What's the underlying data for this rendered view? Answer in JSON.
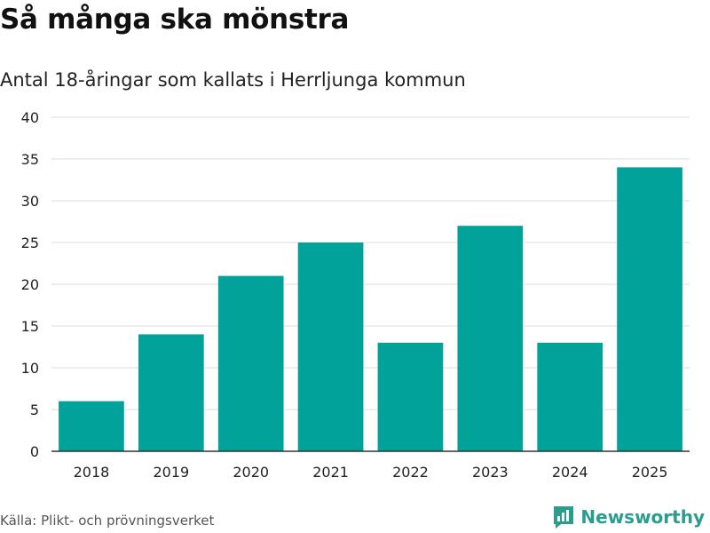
{
  "title": "Så många ska mönstra",
  "subtitle": "Antal 18-åringar som kallats i Herrljunga kommun",
  "source": "Källa: Plikt- och prövningsverket",
  "brand": {
    "name": "Newsworthy",
    "icon": "newsworthy-logo-icon",
    "color": "#2a9d8f"
  },
  "chart_data": {
    "type": "bar",
    "categories": [
      "2018",
      "2019",
      "2020",
      "2021",
      "2022",
      "2023",
      "2024",
      "2025"
    ],
    "values": [
      6,
      14,
      21,
      25,
      13,
      27,
      13,
      34
    ],
    "title": "Så många ska mönstra",
    "subtitle": "Antal 18-åringar som kallats i Herrljunga kommun",
    "xlabel": "",
    "ylabel": "",
    "ylim": [
      0,
      40
    ],
    "yticks": [
      0,
      5,
      10,
      15,
      20,
      25,
      30,
      35,
      40
    ],
    "grid": true,
    "bar_color": "#00a29a",
    "grid_color": "#dddddd",
    "axis_color": "#333333"
  }
}
